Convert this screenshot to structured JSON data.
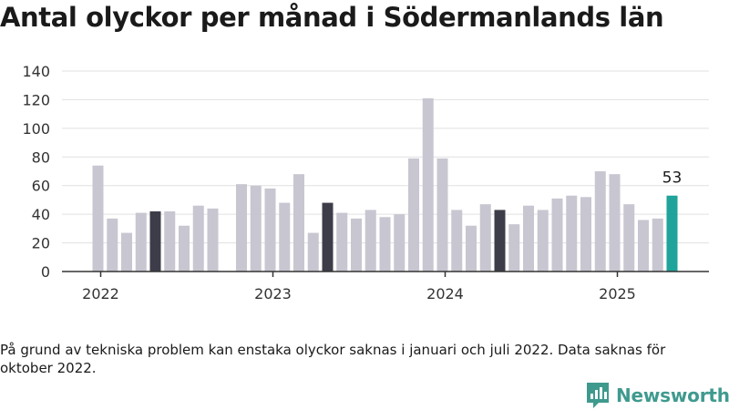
{
  "chart_data": {
    "type": "bar",
    "title": "Antal olyckor per månad i Södermanlands län",
    "xlabel": "",
    "ylabel": "",
    "ylim": [
      0,
      140
    ],
    "yticks": [
      "0",
      "20",
      "40",
      "60",
      "80",
      "100",
      "120",
      "140"
    ],
    "xticks": [
      {
        "label": "2022",
        "month": "2022-01"
      },
      {
        "label": "2023",
        "month": "2023-01"
      },
      {
        "label": "2024",
        "month": "2024-01"
      },
      {
        "label": "2025",
        "month": "2025-01"
      }
    ],
    "grid": true,
    "categories": [
      "2022-01",
      "2022-02",
      "2022-03",
      "2022-04",
      "2022-05",
      "2022-06",
      "2022-07",
      "2022-08",
      "2022-09",
      "2022-10",
      "2022-11",
      "2022-12",
      "2023-01",
      "2023-02",
      "2023-03",
      "2023-04",
      "2023-05",
      "2023-06",
      "2023-07",
      "2023-08",
      "2023-09",
      "2023-10",
      "2023-11",
      "2023-12",
      "2024-01",
      "2024-02",
      "2024-03",
      "2024-04",
      "2024-05",
      "2024-06",
      "2024-07",
      "2024-08",
      "2024-09",
      "2024-10",
      "2024-11",
      "2024-12",
      "2025-01",
      "2025-02",
      "2025-03",
      "2025-04",
      "2025-05",
      "2025-06"
    ],
    "values": [
      74,
      37,
      27,
      41,
      42,
      42,
      32,
      46,
      44,
      null,
      61,
      60,
      58,
      48,
      68,
      27,
      48,
      41,
      37,
      43,
      38,
      40,
      79,
      121,
      79,
      43,
      32,
      47,
      43,
      33,
      46,
      43,
      51,
      53,
      52,
      70,
      68,
      47,
      36,
      37,
      53,
      null
    ],
    "highlight_months": [
      "2022-05",
      "2023-05",
      "2024-05"
    ],
    "latest_month": "2025-05",
    "data_label": {
      "month": "2025-05",
      "text": "53"
    },
    "colors": {
      "bar": "#c8c6d0",
      "highlight": "#3d3d4a",
      "latest": "#1fa39a",
      "grid": "#e1e1e1",
      "axis": "#333333"
    }
  },
  "footnote": "På grund av tekniska problem kan enstaka olyckor saknas i januari och juli 2022. Data saknas för oktober 2022.",
  "brand": {
    "name": "Newsworthy",
    "color": "#3f9a8e"
  }
}
